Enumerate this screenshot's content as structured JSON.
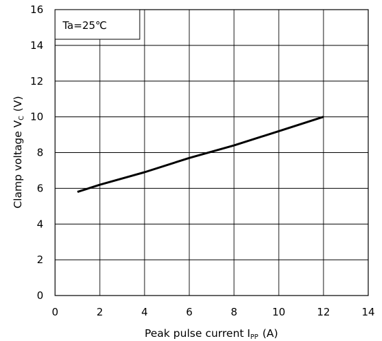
{
  "chart_data": {
    "type": "line",
    "xlabel": "Peak pulse current I",
    "xlabel_sub": "PP",
    "xlabel_unit": "(A)",
    "ylabel": "Clamp voltage  V",
    "ylabel_sub": "C",
    "ylabel_unit": "(V)",
    "xlim": [
      0,
      14
    ],
    "ylim": [
      0,
      16
    ],
    "x_ticks": [
      "0",
      "2",
      "4",
      "6",
      "8",
      "10",
      "12",
      "14"
    ],
    "y_ticks": [
      "0",
      "2",
      "4",
      "6",
      "8",
      "10",
      "12",
      "14",
      "16"
    ],
    "grid": true,
    "annotation": "Ta=25℃",
    "series": [
      {
        "x": [
          1,
          2,
          4,
          6,
          8,
          10,
          12
        ],
        "y": [
          5.8,
          6.2,
          6.9,
          7.7,
          8.4,
          9.2,
          10.0
        ],
        "color": "#000000"
      }
    ]
  }
}
